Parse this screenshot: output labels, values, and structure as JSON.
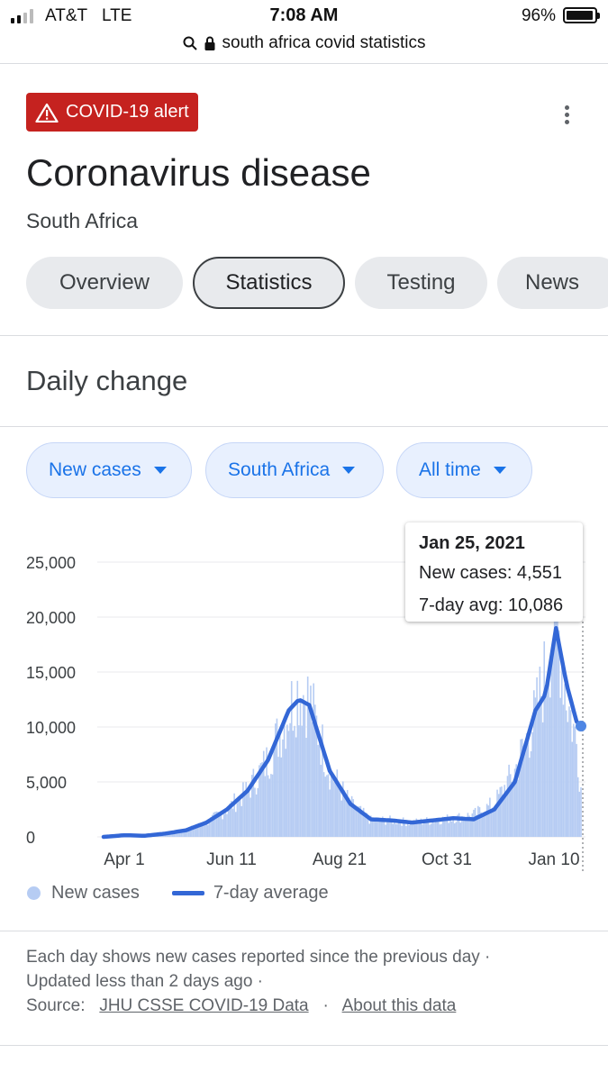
{
  "status_bar": {
    "carrier": "AT&T",
    "network": "LTE",
    "time": "7:08 AM",
    "battery": "96%",
    "battery_level": 0.96
  },
  "url_bar": {
    "text": "south africa covid statistics"
  },
  "alert": {
    "label": "COVID-19 alert",
    "color": "#c5221f"
  },
  "header": {
    "title": "Coronavirus disease",
    "subtitle": "South Africa"
  },
  "tabs": [
    {
      "label": "Overview",
      "active": false
    },
    {
      "label": "Statistics",
      "active": true
    },
    {
      "label": "Testing",
      "active": false
    },
    {
      "label": "News",
      "active": false
    }
  ],
  "section": {
    "title": "Daily change"
  },
  "filters": [
    {
      "label": "New cases"
    },
    {
      "label": "South Africa"
    },
    {
      "label": "All time"
    }
  ],
  "tooltip": {
    "date": "Jan 25, 2021",
    "new_cases": "New cases: 4,551",
    "avg": "7-day avg: 10,086"
  },
  "chart_data": {
    "type": "bar",
    "title": "",
    "xlabel": "",
    "ylabel": "",
    "ylim": [
      0,
      25000
    ],
    "y_ticks": [
      "25,000",
      "20,000",
      "15,000",
      "10,000",
      "5,000",
      "0"
    ],
    "x_ticks": [
      "Apr 1",
      "Jun 11",
      "Aug 21",
      "Oct 31",
      "Jan 10"
    ],
    "grid": true,
    "legend": "bottom-left",
    "series": [
      {
        "name": "New cases",
        "type": "bar",
        "color": "#b6ccf3",
        "x": [
          "2020-03-06",
          "2020-03-20",
          "2020-04-03",
          "2020-04-17",
          "2020-05-01",
          "2020-05-15",
          "2020-05-29",
          "2020-06-12",
          "2020-06-26",
          "2020-07-10",
          "2020-07-17",
          "2020-07-24",
          "2020-08-07",
          "2020-08-21",
          "2020-09-04",
          "2020-09-18",
          "2020-10-02",
          "2020-10-16",
          "2020-10-30",
          "2020-11-13",
          "2020-11-27",
          "2020-12-11",
          "2020-12-25",
          "2021-01-01",
          "2021-01-08",
          "2021-01-15",
          "2021-01-22",
          "2021-01-25"
        ],
        "values": [
          0,
          150,
          100,
          300,
          600,
          1300,
          2500,
          4200,
          7000,
          11500,
          13500,
          12500,
          6000,
          3000,
          1500,
          1500,
          1300,
          1500,
          1700,
          2000,
          3000,
          6000,
          11000,
          15000,
          20500,
          13000,
          8500,
          4551
        ]
      },
      {
        "name": "7-day average",
        "type": "line",
        "color": "#3367d6",
        "x": [
          "2020-03-06",
          "2020-03-20",
          "2020-04-03",
          "2020-04-17",
          "2020-05-01",
          "2020-05-15",
          "2020-05-29",
          "2020-06-12",
          "2020-06-26",
          "2020-07-10",
          "2020-07-17",
          "2020-07-24",
          "2020-08-07",
          "2020-08-21",
          "2020-09-04",
          "2020-09-18",
          "2020-10-02",
          "2020-10-16",
          "2020-10-30",
          "2020-11-13",
          "2020-11-27",
          "2020-12-11",
          "2020-12-25",
          "2021-01-01",
          "2021-01-08",
          "2021-01-15",
          "2021-01-22",
          "2021-01-25"
        ],
        "values": [
          0,
          150,
          100,
          300,
          600,
          1300,
          2500,
          4200,
          7000,
          11500,
          12500,
          12000,
          6000,
          3000,
          1600,
          1500,
          1300,
          1500,
          1700,
          1600,
          2500,
          5000,
          11500,
          13000,
          19000,
          14000,
          10500,
          10086
        ]
      }
    ]
  },
  "legend": {
    "new_cases": "New cases",
    "avg": "7-day average"
  },
  "footer": {
    "line1": "Each day shows new cases reported since the previous day ·",
    "line2": "Updated less than 2 days ago  ·",
    "source_label": "Source:",
    "source_link": "JHU CSSE COVID-19 Data",
    "sep": "·",
    "about_link": "About this data"
  }
}
